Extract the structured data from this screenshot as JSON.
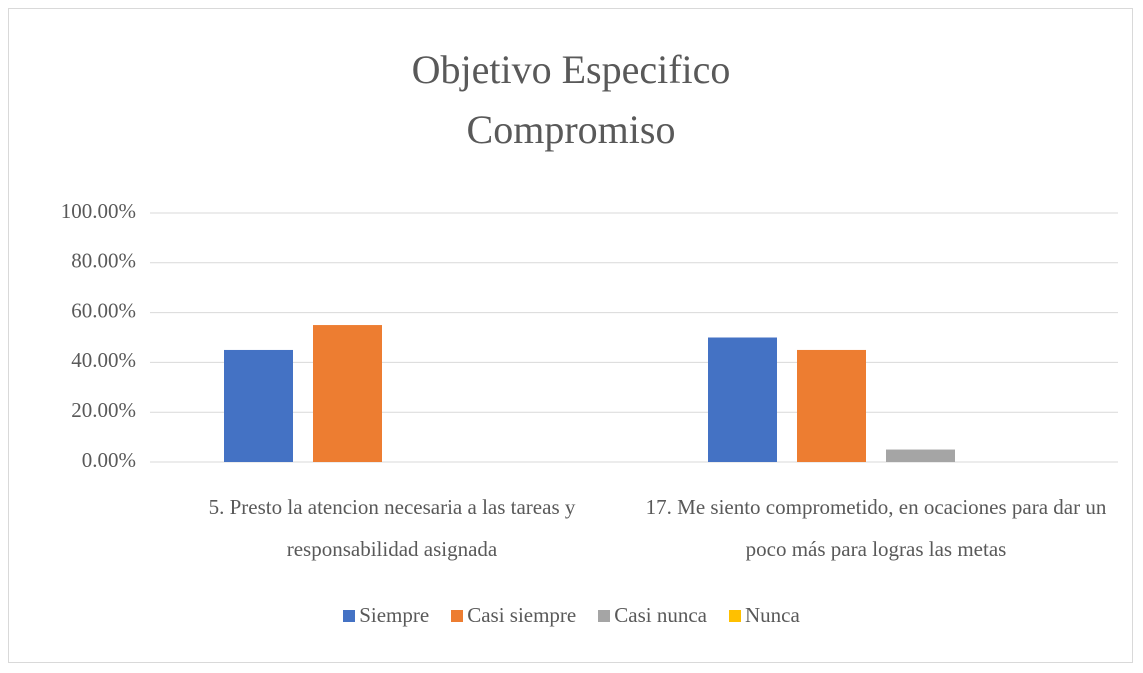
{
  "chart_data": {
    "type": "bar",
    "title": "Objetivo Especifico Compromiso",
    "categories": [
      "5. Presto la atencion necesaria a las tareas y responsabilidad asignada",
      "17. Me siento comprometido, en ocaciones para dar un poco más para logras las metas"
    ],
    "series": [
      {
        "name": "Siempre",
        "color": "#4472c4",
        "values": [
          45,
          50
        ]
      },
      {
        "name": "Casi siempre",
        "color": "#ed7d31",
        "values": [
          55,
          45
        ]
      },
      {
        "name": "Casi nunca",
        "color": "#a5a5a5",
        "values": [
          0,
          5
        ]
      },
      {
        "name": "Nunca",
        "color": "#ffc000",
        "values": [
          0,
          0
        ]
      }
    ],
    "ylim": [
      0,
      100
    ],
    "yticks": [
      {
        "value": 0,
        "label": "0.00%"
      },
      {
        "value": 20,
        "label": "20.00%"
      },
      {
        "value": 40,
        "label": "40.00%"
      },
      {
        "value": 60,
        "label": "60.00%"
      },
      {
        "value": 80,
        "label": "80.00%"
      },
      {
        "value": 100,
        "label": "100.00%"
      }
    ],
    "grid": true,
    "legend": "bottom"
  }
}
